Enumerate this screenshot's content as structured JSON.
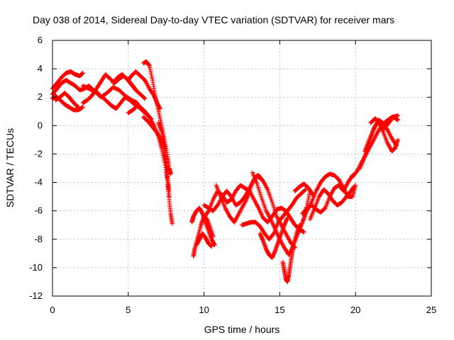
{
  "chart_data": {
    "type": "scatter",
    "title": "Day 038 of 2014, Sidereal Day-to-day VTEC variation (SDTVAR) for receiver mars",
    "xlabel": "GPS time / hours",
    "ylabel": "SDTVAR / TECUs",
    "xlim": [
      0,
      25
    ],
    "ylim": [
      -12,
      6
    ],
    "xticks": [
      0,
      5,
      10,
      15,
      20,
      25
    ],
    "yticks": [
      -12,
      -10,
      -8,
      -6,
      -4,
      -2,
      0,
      2,
      4,
      6
    ],
    "grid": true,
    "marker": "plus",
    "color": "#ff0000",
    "series": [
      {
        "x": [
          0.0,
          0.3,
          0.6,
          0.9,
          1.2,
          1.5,
          1.8,
          2.0
        ],
        "y": [
          2.6,
          3.0,
          3.4,
          3.7,
          3.8,
          3.6,
          3.5,
          3.7
        ]
      },
      {
        "x": [
          0.0,
          0.3,
          0.6,
          0.9,
          1.2,
          1.5,
          1.8,
          2.1,
          2.4,
          2.7,
          3.0
        ],
        "y": [
          2.2,
          2.6,
          3.0,
          3.2,
          3.0,
          2.8,
          2.5,
          2.6,
          2.8,
          2.5,
          2.3
        ]
      },
      {
        "x": [
          0.0,
          0.2,
          0.5,
          0.8,
          1.1,
          1.4,
          1.7,
          2.0
        ],
        "y": [
          1.9,
          2.1,
          1.8,
          1.5,
          1.3,
          1.1,
          1.1,
          1.3
        ]
      },
      {
        "x": [
          0.2,
          0.5,
          0.8,
          1.1,
          1.4,
          1.7
        ],
        "y": [
          1.8,
          2.0,
          2.3,
          2.0,
          1.6,
          1.3
        ]
      },
      {
        "x": [
          2.0,
          2.3,
          2.6,
          2.9,
          3.2,
          3.5,
          3.8,
          4.1,
          4.4,
          4.7,
          5.0,
          5.3,
          5.5
        ],
        "y": [
          1.6,
          1.8,
          2.1,
          2.6,
          3.1,
          3.6,
          3.3,
          3.0,
          3.3,
          3.5,
          3.2,
          2.8,
          2.5
        ]
      },
      {
        "x": [
          2.0,
          2.4,
          2.8,
          3.2,
          3.6,
          4.0,
          4.4,
          4.8,
          5.2,
          5.6
        ],
        "y": [
          2.8,
          2.6,
          2.4,
          2.0,
          2.3,
          2.7,
          2.5,
          2.1,
          1.8,
          1.6
        ]
      },
      {
        "x": [
          3.0,
          3.3,
          3.6,
          3.9,
          4.2,
          4.5,
          4.8,
          5.1,
          5.4,
          5.7,
          6.0
        ],
        "y": [
          2.2,
          2.0,
          1.7,
          1.4,
          1.2,
          1.6,
          2.0,
          1.8,
          1.5,
          1.3,
          1.1
        ]
      },
      {
        "x": [
          4.0,
          4.3,
          4.6,
          4.9,
          5.2,
          5.5,
          5.8,
          6.1
        ],
        "y": [
          3.0,
          3.4,
          3.6,
          3.3,
          2.9,
          2.5,
          2.2,
          1.9
        ]
      },
      {
        "x": [
          5.0,
          5.2,
          5.5,
          5.8,
          6.1,
          6.4,
          6.7,
          6.9,
          7.1
        ],
        "y": [
          3.2,
          3.5,
          3.8,
          3.5,
          3.2,
          2.6,
          2.1,
          1.6,
          1.2
        ]
      },
      {
        "x": [
          5.0,
          5.3,
          5.6,
          5.9,
          6.2,
          6.5
        ],
        "y": [
          0.9,
          1.1,
          1.4,
          1.1,
          0.8,
          0.5
        ]
      },
      {
        "x": [
          6.0,
          6.2,
          6.4,
          6.6,
          6.8,
          7.0,
          7.2,
          7.4,
          7.6,
          7.7,
          7.8
        ],
        "y": [
          4.4,
          4.5,
          4.2,
          3.2,
          2.0,
          1.0,
          0.0,
          -1.0,
          -2.2,
          -3.0,
          -3.4
        ]
      },
      {
        "x": [
          5.5,
          5.8,
          6.1,
          6.4,
          6.7,
          7.0,
          7.2,
          7.4,
          7.6,
          7.7
        ],
        "y": [
          1.6,
          1.3,
          1.0,
          0.6,
          0.0,
          -0.8,
          -1.6,
          -2.6,
          -4.0,
          -5.0
        ]
      },
      {
        "x": [
          6.0,
          6.3,
          6.6,
          6.9,
          7.2,
          7.4,
          7.5,
          7.6,
          7.7,
          7.8,
          7.9
        ],
        "y": [
          0.6,
          0.3,
          -0.1,
          -0.5,
          -1.0,
          -1.6,
          -2.8,
          -4.0,
          -5.2,
          -6.2,
          -6.9
        ]
      },
      {
        "x": [
          7.0,
          7.2,
          7.4,
          7.5,
          7.6,
          7.7
        ],
        "y": [
          0.2,
          -0.4,
          -1.4,
          -2.4,
          -3.6,
          -4.6
        ]
      },
      {
        "x": [
          9.2,
          9.3,
          9.5,
          9.7,
          9.9,
          10.1,
          10.3,
          10.5,
          10.7
        ],
        "y": [
          -6.8,
          -6.4,
          -6.0,
          -5.8,
          -6.2,
          -6.8,
          -7.4,
          -8.0,
          -8.4
        ]
      },
      {
        "x": [
          9.3,
          9.4,
          9.6,
          9.8,
          10.0,
          10.2,
          10.4,
          10.6
        ],
        "y": [
          -9.2,
          -8.6,
          -7.8,
          -7.0,
          -6.4,
          -6.6,
          -7.2,
          -7.8
        ]
      },
      {
        "x": [
          9.5,
          9.7,
          9.9,
          10.1,
          10.3,
          10.5
        ],
        "y": [
          -8.4,
          -8.0,
          -7.6,
          -7.9,
          -8.3,
          -8.5
        ]
      },
      {
        "x": [
          10.0,
          10.3,
          10.6,
          10.9,
          11.2,
          11.5,
          11.8,
          12.1,
          12.4,
          12.7,
          13.0,
          13.3,
          13.6,
          13.9,
          14.2,
          14.5,
          14.8,
          15.1,
          15.4,
          15.7,
          16.0,
          16.3,
          16.6
        ],
        "y": [
          -6.5,
          -6.0,
          -5.2,
          -4.6,
          -4.9,
          -5.4,
          -5.2,
          -4.6,
          -4.2,
          -4.4,
          -4.6,
          -5.2,
          -5.8,
          -6.5,
          -6.8,
          -6.4,
          -5.9,
          -5.8,
          -6.0,
          -6.5,
          -7.0,
          -7.3,
          -7.5
        ]
      },
      {
        "x": [
          10.0,
          10.3,
          10.6,
          10.9,
          11.2,
          11.5,
          11.8,
          12.1,
          12.4,
          12.7,
          13.0,
          13.3,
          13.6,
          13.9,
          14.2,
          14.5,
          14.8,
          15.1,
          15.4,
          15.7,
          16.0
        ],
        "y": [
          -5.6,
          -5.8,
          -6.0,
          -5.6,
          -5.0,
          -4.6,
          -5.0,
          -5.6,
          -5.4,
          -5.0,
          -4.4,
          -3.8,
          -3.5,
          -3.9,
          -4.5,
          -5.4,
          -6.4,
          -7.0,
          -7.6,
          -8.2,
          -8.6
        ]
      },
      {
        "x": [
          10.8,
          11.1,
          11.4,
          11.7,
          12.0,
          12.3,
          12.6,
          12.9,
          13.2,
          13.5,
          13.8
        ],
        "y": [
          -4.2,
          -5.0,
          -5.8,
          -6.4,
          -6.8,
          -6.2,
          -5.6,
          -5.0,
          -4.0,
          -3.5,
          -3.8
        ]
      },
      {
        "x": [
          12.5,
          12.8,
          13.1,
          13.4,
          13.7,
          14.0,
          14.3,
          14.6,
          14.9,
          15.2,
          15.5,
          15.8,
          16.1,
          16.4,
          16.7
        ],
        "y": [
          -7.0,
          -6.9,
          -6.8,
          -6.8,
          -7.1,
          -7.6,
          -8.0,
          -7.6,
          -6.8,
          -6.4,
          -6.0,
          -5.6,
          -5.1,
          -4.8,
          -4.5
        ]
      },
      {
        "x": [
          13.2,
          13.5,
          13.8,
          14.1,
          14.4,
          14.7,
          15.0,
          15.3,
          15.6,
          15.9,
          16.2,
          16.5,
          16.8,
          17.0
        ],
        "y": [
          -3.3,
          -4.1,
          -5.1,
          -6.0,
          -6.6,
          -7.3,
          -8.0,
          -8.6,
          -9.1,
          -8.4,
          -7.6,
          -6.8,
          -5.6,
          -4.6
        ]
      },
      {
        "x": [
          13.7,
          13.9,
          14.1,
          14.3,
          14.5,
          14.7,
          14.9,
          15.1,
          15.3,
          15.5
        ],
        "y": [
          -7.6,
          -8.1,
          -8.7,
          -9.1,
          -9.3,
          -8.8,
          -8.2,
          -7.6,
          -7.0,
          -6.5
        ]
      },
      {
        "x": [
          15.2,
          15.3,
          15.4,
          15.5,
          15.6,
          15.7,
          15.8,
          15.9,
          16.1,
          16.3
        ],
        "y": [
          -9.6,
          -10.2,
          -10.8,
          -11.0,
          -10.5,
          -9.8,
          -9.1,
          -8.4,
          -7.6,
          -7.0
        ]
      },
      {
        "x": [
          16.2,
          16.5,
          16.8,
          17.1,
          17.4,
          17.7,
          18.0,
          18.3,
          18.6,
          18.9,
          19.2,
          19.5,
          19.8,
          20.0
        ],
        "y": [
          -7.6,
          -6.8,
          -6.0,
          -5.4,
          -4.6,
          -4.0,
          -3.6,
          -3.4,
          -3.5,
          -3.8,
          -4.4,
          -5.0,
          -5.0,
          -4.2
        ]
      },
      {
        "x": [
          16.5,
          16.8,
          17.1,
          17.4,
          17.7,
          18.0,
          18.3,
          18.6,
          18.9,
          19.2,
          19.5,
          19.8
        ],
        "y": [
          -6.2,
          -5.8,
          -5.6,
          -5.9,
          -6.1,
          -5.8,
          -5.0,
          -4.4,
          -4.2,
          -4.6,
          -4.0,
          -3.5
        ]
      },
      {
        "x": [
          17.0,
          17.3,
          17.6,
          17.9,
          18.2,
          18.5,
          18.8,
          19.1,
          19.4,
          19.7,
          19.9
        ],
        "y": [
          -6.6,
          -5.8,
          -5.0,
          -4.5,
          -4.8,
          -5.3,
          -5.6,
          -5.4,
          -5.0,
          -4.6,
          -4.3
        ]
      },
      {
        "x": [
          16.0,
          16.3,
          16.6,
          16.9,
          17.2
        ],
        "y": [
          -4.6,
          -4.3,
          -4.1,
          -4.4,
          -4.9
        ]
      },
      {
        "x": [
          19.8,
          20.1,
          20.4,
          20.7,
          21.0,
          21.3,
          21.6,
          22.0,
          22.4,
          22.8
        ],
        "y": [
          -3.6,
          -3.2,
          -2.6,
          -2.0,
          -1.4,
          -0.8,
          -0.2,
          0.3,
          0.6,
          0.7
        ]
      },
      {
        "x": [
          20.3,
          20.6,
          20.9,
          21.2,
          21.5,
          21.8,
          22.1,
          22.4,
          22.7
        ],
        "y": [
          -3.0,
          -2.2,
          -1.2,
          -0.3,
          0.4,
          0.2,
          -0.3,
          -0.9,
          -1.4
        ]
      },
      {
        "x": [
          20.6,
          20.9,
          21.2,
          21.5,
          21.8,
          22.1,
          22.4,
          22.6,
          22.8
        ],
        "y": [
          -1.8,
          -1.0,
          -0.2,
          0.3,
          -0.4,
          -1.2,
          -1.8,
          -1.6,
          -1.0
        ]
      },
      {
        "x": [
          21.0,
          21.3,
          21.6,
          21.9,
          22.2,
          22.5,
          22.8
        ],
        "y": [
          0.2,
          0.5,
          0.2,
          -0.2,
          0.2,
          0.6,
          0.4
        ]
      }
    ]
  }
}
